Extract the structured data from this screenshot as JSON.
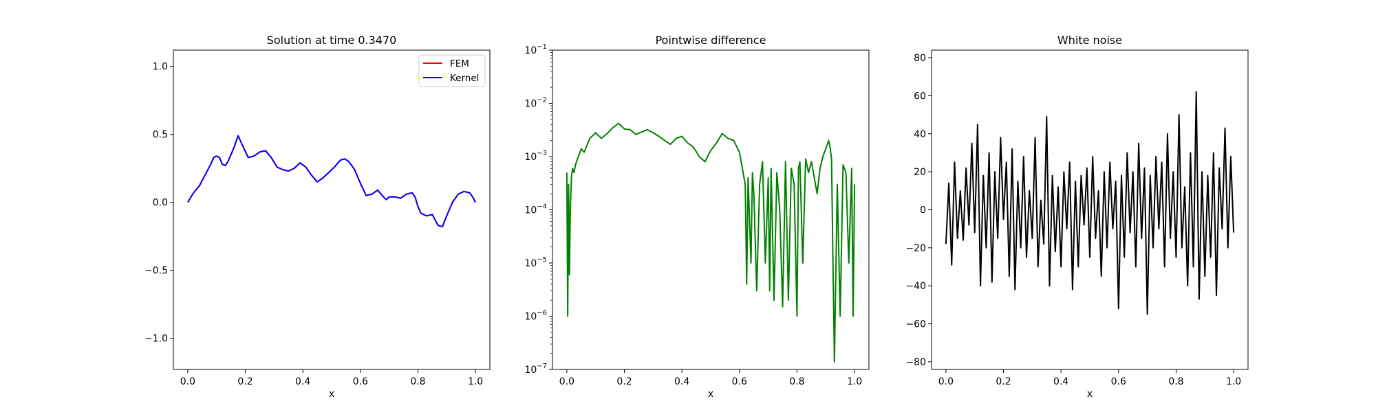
{
  "chart_data": [
    {
      "type": "line",
      "title": "Solution at time 0.3470",
      "xlabel": "x",
      "ylabel": "",
      "xlim": [
        -0.05,
        1.05
      ],
      "ylim": [
        -1.23,
        1.12
      ],
      "xticks": [
        0.0,
        0.2,
        0.4,
        0.6,
        0.8,
        1.0
      ],
      "xtick_labels": [
        "0.0",
        "0.2",
        "0.4",
        "0.6",
        "0.8",
        "1.0"
      ],
      "yticks": [
        -1.0,
        -0.5,
        0.0,
        0.5,
        1.0
      ],
      "ytick_labels": [
        "−1.0",
        "−0.5",
        "0.0",
        "0.5",
        "1.0"
      ],
      "legend": {
        "placement": "upper right",
        "entries": [
          "FEM",
          "Kernel"
        ]
      },
      "series": [
        {
          "name": "FEM",
          "color": "#ff0000",
          "x": [
            0.0,
            0.02,
            0.04,
            0.06,
            0.08,
            0.09,
            0.1,
            0.11,
            0.12,
            0.13,
            0.14,
            0.16,
            0.175,
            0.19,
            0.21,
            0.23,
            0.25,
            0.27,
            0.29,
            0.31,
            0.33,
            0.35,
            0.37,
            0.39,
            0.41,
            0.43,
            0.45,
            0.47,
            0.49,
            0.51,
            0.53,
            0.545,
            0.56,
            0.58,
            0.6,
            0.62,
            0.64,
            0.66,
            0.68,
            0.69,
            0.7,
            0.72,
            0.74,
            0.76,
            0.78,
            0.79,
            0.8,
            0.81,
            0.83,
            0.85,
            0.87,
            0.885,
            0.9,
            0.92,
            0.94,
            0.96,
            0.98,
            0.99,
            1.0
          ],
          "y": [
            0.0,
            0.07,
            0.12,
            0.2,
            0.28,
            0.33,
            0.34,
            0.33,
            0.28,
            0.27,
            0.3,
            0.4,
            0.49,
            0.42,
            0.33,
            0.34,
            0.37,
            0.38,
            0.33,
            0.26,
            0.24,
            0.23,
            0.25,
            0.29,
            0.26,
            0.2,
            0.15,
            0.18,
            0.22,
            0.26,
            0.31,
            0.32,
            0.3,
            0.24,
            0.14,
            0.05,
            0.06,
            0.09,
            0.04,
            0.02,
            0.04,
            0.04,
            0.03,
            0.06,
            0.07,
            0.04,
            -0.03,
            -0.08,
            -0.1,
            -0.09,
            -0.17,
            -0.18,
            -0.1,
            0.0,
            0.06,
            0.08,
            0.07,
            0.04,
            0.0
          ]
        },
        {
          "name": "Kernel",
          "color": "#0000ff",
          "x": [
            0.0,
            0.02,
            0.04,
            0.06,
            0.08,
            0.09,
            0.1,
            0.11,
            0.12,
            0.13,
            0.14,
            0.16,
            0.175,
            0.19,
            0.21,
            0.23,
            0.25,
            0.27,
            0.29,
            0.31,
            0.33,
            0.35,
            0.37,
            0.39,
            0.41,
            0.43,
            0.45,
            0.47,
            0.49,
            0.51,
            0.53,
            0.545,
            0.56,
            0.58,
            0.6,
            0.62,
            0.64,
            0.66,
            0.68,
            0.69,
            0.7,
            0.72,
            0.74,
            0.76,
            0.78,
            0.79,
            0.8,
            0.81,
            0.83,
            0.85,
            0.87,
            0.885,
            0.9,
            0.92,
            0.94,
            0.96,
            0.98,
            0.99,
            1.0
          ],
          "y": [
            0.0,
            0.07,
            0.12,
            0.2,
            0.28,
            0.33,
            0.34,
            0.33,
            0.28,
            0.27,
            0.3,
            0.4,
            0.49,
            0.42,
            0.33,
            0.34,
            0.37,
            0.38,
            0.33,
            0.26,
            0.24,
            0.23,
            0.25,
            0.29,
            0.26,
            0.2,
            0.15,
            0.18,
            0.22,
            0.26,
            0.31,
            0.32,
            0.3,
            0.24,
            0.14,
            0.05,
            0.06,
            0.09,
            0.04,
            0.02,
            0.04,
            0.04,
            0.03,
            0.06,
            0.07,
            0.04,
            -0.03,
            -0.08,
            -0.1,
            -0.09,
            -0.17,
            -0.18,
            -0.1,
            0.0,
            0.06,
            0.08,
            0.07,
            0.04,
            0.0
          ]
        }
      ]
    },
    {
      "type": "line",
      "title": "Pointwise difference",
      "xlabel": "x",
      "ylabel": "",
      "yscale": "log",
      "xlim": [
        -0.05,
        1.05
      ],
      "ylim": [
        1e-07,
        0.1
      ],
      "xticks": [
        0.0,
        0.2,
        0.4,
        0.6,
        0.8,
        1.0
      ],
      "xtick_labels": [
        "0.0",
        "0.2",
        "0.4",
        "0.6",
        "0.8",
        "1.0"
      ],
      "ytick_exponents": [
        -7,
        -6,
        -5,
        -4,
        -3,
        -2,
        -1
      ],
      "series": [
        {
          "color": "#008000",
          "x": [
            0.0,
            0.003,
            0.006,
            0.009,
            0.012,
            0.016,
            0.02,
            0.025,
            0.03,
            0.04,
            0.05,
            0.06,
            0.08,
            0.1,
            0.12,
            0.14,
            0.16,
            0.18,
            0.2,
            0.22,
            0.24,
            0.26,
            0.28,
            0.3,
            0.32,
            0.34,
            0.36,
            0.38,
            0.4,
            0.42,
            0.44,
            0.46,
            0.48,
            0.5,
            0.52,
            0.54,
            0.56,
            0.58,
            0.6,
            0.61,
            0.62,
            0.625,
            0.63,
            0.64,
            0.645,
            0.65,
            0.66,
            0.67,
            0.68,
            0.69,
            0.7,
            0.705,
            0.71,
            0.72,
            0.73,
            0.74,
            0.75,
            0.76,
            0.77,
            0.78,
            0.79,
            0.8,
            0.805,
            0.81,
            0.82,
            0.83,
            0.84,
            0.85,
            0.86,
            0.87,
            0.88,
            0.89,
            0.9,
            0.91,
            0.915,
            0.92,
            0.925,
            0.93,
            0.94,
            0.95,
            0.96,
            0.97,
            0.98,
            0.99,
            0.995,
            1.0
          ],
          "y": [
            0.0005,
            1e-06,
            0.0003,
            6e-06,
            0.0001,
            0.0004,
            0.0006,
            0.0005,
            0.0007,
            0.001,
            0.0014,
            0.0012,
            0.0022,
            0.0028,
            0.0022,
            0.0027,
            0.0035,
            0.0042,
            0.0033,
            0.0032,
            0.0026,
            0.0029,
            0.0032,
            0.0028,
            0.0024,
            0.002,
            0.0017,
            0.0022,
            0.0024,
            0.0018,
            0.0015,
            0.001,
            0.0008,
            0.0013,
            0.0018,
            0.0027,
            0.0022,
            0.002,
            0.0012,
            0.0006,
            0.0003,
            4e-06,
            0.0004,
            1e-05,
            0.0005,
            0.0002,
            3e-06,
            0.0003,
            0.0008,
            1e-05,
            0.0004,
            3e-06,
            0.0006,
            2e-06,
            0.0005,
            0.0001,
            1.5e-06,
            0.0008,
            2e-06,
            0.0006,
            0.0003,
            1e-06,
            0.0006,
            0.0008,
            1e-05,
            0.0009,
            0.0005,
            0.0008,
            0.0004,
            0.0002,
            0.0006,
            0.001,
            0.0014,
            0.002,
            0.0015,
            0.0009,
            1e-05,
            1.4e-07,
            0.0003,
            1e-06,
            0.0007,
            0.0005,
            1e-05,
            0.0006,
            1e-06,
            0.0003
          ]
        }
      ]
    },
    {
      "type": "line",
      "title": "White noise",
      "xlabel": "x",
      "ylabel": "",
      "xlim": [
        -0.05,
        1.05
      ],
      "ylim": [
        -84,
        84
      ],
      "xticks": [
        0.0,
        0.2,
        0.4,
        0.6,
        0.8,
        1.0
      ],
      "xtick_labels": [
        "0.0",
        "0.2",
        "0.4",
        "0.6",
        "0.8",
        "1.0"
      ],
      "yticks": [
        -80,
        -60,
        -40,
        -20,
        0,
        20,
        40,
        60,
        80
      ],
      "ytick_labels": [
        "−80",
        "−60",
        "−40",
        "−20",
        "0",
        "20",
        "40",
        "60",
        "80"
      ],
      "series": [
        {
          "color": "#000000",
          "x": [
            0.0,
            0.01,
            0.02,
            0.03,
            0.04,
            0.05,
            0.06,
            0.07,
            0.08,
            0.09,
            0.1,
            0.11,
            0.12,
            0.13,
            0.14,
            0.15,
            0.16,
            0.17,
            0.18,
            0.19,
            0.2,
            0.21,
            0.22,
            0.23,
            0.24,
            0.25,
            0.26,
            0.27,
            0.28,
            0.29,
            0.3,
            0.31,
            0.32,
            0.33,
            0.34,
            0.35,
            0.36,
            0.37,
            0.38,
            0.39,
            0.4,
            0.41,
            0.42,
            0.43,
            0.44,
            0.45,
            0.46,
            0.47,
            0.48,
            0.49,
            0.5,
            0.51,
            0.52,
            0.53,
            0.54,
            0.55,
            0.56,
            0.57,
            0.58,
            0.59,
            0.6,
            0.61,
            0.62,
            0.63,
            0.64,
            0.65,
            0.66,
            0.67,
            0.68,
            0.69,
            0.7,
            0.71,
            0.72,
            0.73,
            0.74,
            0.75,
            0.76,
            0.77,
            0.78,
            0.79,
            0.8,
            0.81,
            0.82,
            0.83,
            0.84,
            0.85,
            0.86,
            0.87,
            0.88,
            0.89,
            0.9,
            0.91,
            0.92,
            0.93,
            0.94,
            0.95,
            0.96,
            0.97,
            0.98,
            0.99,
            1.0
          ],
          "y": [
            -18,
            14,
            -29,
            25,
            -15,
            10,
            -16,
            22,
            -8,
            35,
            -12,
            45,
            -40,
            18,
            -20,
            30,
            -38,
            20,
            -15,
            38,
            -5,
            25,
            -35,
            32,
            -42,
            15,
            -20,
            28,
            -25,
            10,
            -15,
            38,
            -30,
            5,
            -18,
            49,
            -40,
            18,
            -22,
            12,
            -30,
            20,
            -10,
            25,
            -42,
            15,
            -30,
            18,
            -8,
            22,
            -25,
            28,
            -15,
            10,
            -35,
            20,
            -20,
            25,
            -10,
            15,
            -52,
            18,
            -25,
            30,
            -12,
            20,
            -30,
            35,
            -15,
            22,
            -55,
            18,
            -20,
            28,
            -10,
            25,
            -30,
            40,
            -15,
            20,
            -25,
            50,
            -20,
            12,
            -40,
            30,
            -30,
            62,
            -47,
            20,
            -35,
            18,
            -25,
            30,
            -45,
            22,
            -10,
            43,
            -20,
            28,
            -12
          ]
        }
      ]
    }
  ]
}
